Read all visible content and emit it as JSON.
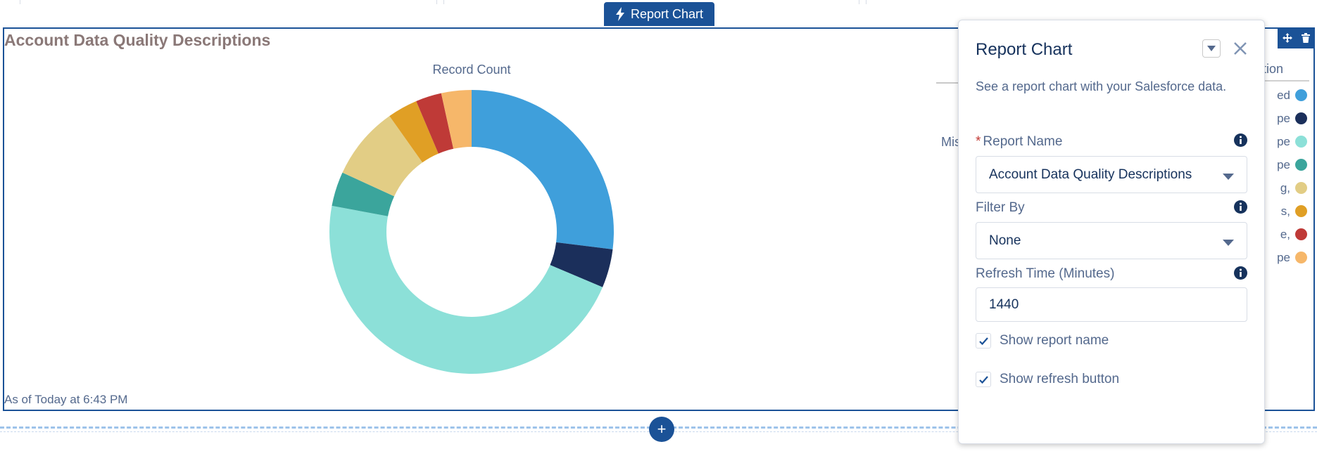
{
  "component_tab": {
    "label": "Report Chart",
    "icon": "lightning-bolt-icon"
  },
  "report": {
    "title": "Account Data Quality Descriptions",
    "timestamp": "As of Today at 6:43 PM"
  },
  "chart_data": {
    "type": "pie",
    "subtype": "donut",
    "title": "Record Count",
    "slices": [
      {
        "value": 27.5,
        "color": "#3f9fdb"
      },
      {
        "value": 4.5,
        "color": "#1b2f5b"
      },
      {
        "value": 47.5,
        "color": "#8ce0d8"
      },
      {
        "value": 4.0,
        "color": "#3ba59c"
      },
      {
        "value": 8.5,
        "color": "#e2cd85"
      },
      {
        "value": 3.5,
        "color": "#e09f25"
      },
      {
        "value": 3.0,
        "color": "#bf3a37"
      },
      {
        "value": 3.5,
        "color": "#f6b76a"
      }
    ],
    "legend_position": "right",
    "legend_header_fragment": "iption",
    "legend_fragments": [
      "ed",
      "pe",
      "pe",
      "pe",
      "g,",
      "s,",
      "e,",
      "pe"
    ],
    "axis_fragment": "Mis"
  },
  "popover": {
    "title": "Report Chart",
    "description": "See a report chart with your Salesforce data.",
    "fields": {
      "report_name": {
        "label": "Report Name",
        "required_marker": "*",
        "value": "Account Data Quality Descriptions"
      },
      "filter_by": {
        "label": "Filter By",
        "value": "None"
      },
      "refresh_time": {
        "label": "Refresh Time (Minutes)",
        "value": "1440"
      }
    },
    "checkboxes": {
      "show_report_name": {
        "label": "Show report name",
        "checked": true
      },
      "show_refresh_button": {
        "label": "Show refresh button",
        "checked": true
      }
    }
  },
  "toolbar": {
    "add_label": "+"
  },
  "colors": {
    "accent": "#1b5297",
    "title": "#8a7877"
  }
}
